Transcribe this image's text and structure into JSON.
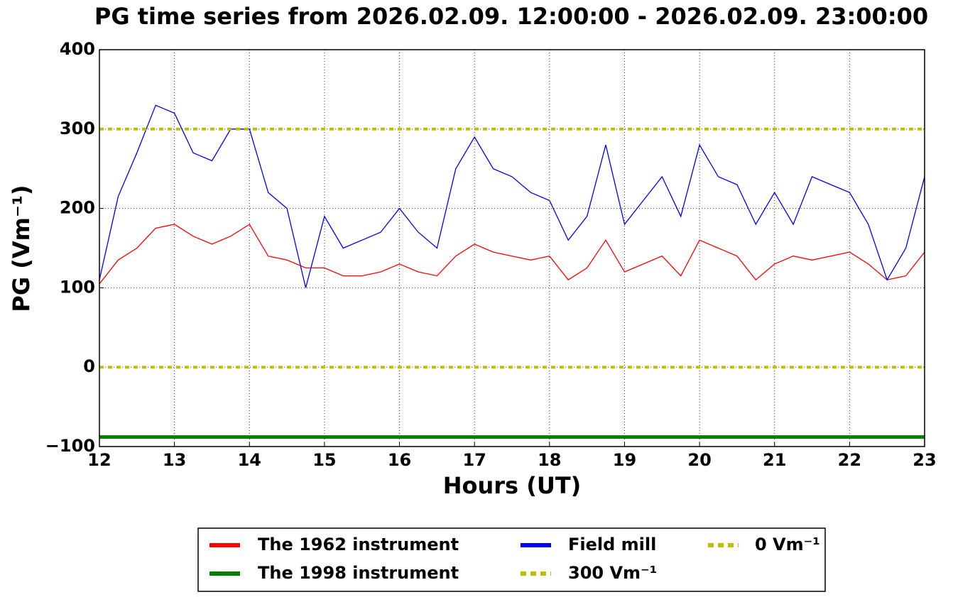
{
  "chart_data": {
    "type": "line",
    "title": "PG time series from 2026.02.09. 12:00:00 - 2026.02.09. 23:00:00",
    "xlabel": "Hours (UT)",
    "ylabel": "PG (Vm⁻¹)",
    "x": [
      12,
      12.25,
      12.5,
      12.75,
      13,
      13.25,
      13.5,
      13.75,
      14,
      14.25,
      14.5,
      14.75,
      15,
      15.25,
      15.5,
      15.75,
      16,
      16.25,
      16.5,
      16.75,
      17,
      17.25,
      17.5,
      17.75,
      18,
      18.25,
      18.5,
      18.75,
      19,
      19.25,
      19.5,
      19.75,
      20,
      20.25,
      20.5,
      20.75,
      21,
      21.25,
      21.5,
      21.75,
      22,
      22.25,
      22.5,
      22.75,
      23
    ],
    "series": [
      {
        "name": "The 1962 instrument",
        "color": "#ff0000",
        "values": [
          105,
          135,
          150,
          175,
          180,
          165,
          155,
          165,
          180,
          140,
          135,
          125,
          125,
          115,
          115,
          120,
          130,
          120,
          115,
          140,
          155,
          145,
          140,
          135,
          140,
          110,
          125,
          160,
          120,
          130,
          140,
          115,
          160,
          150,
          140,
          110,
          130,
          140,
          135,
          140,
          145,
          130,
          110,
          115,
          145
        ]
      },
      {
        "name": "The 1998 instrument",
        "color": "#008000",
        "x": [
          12,
          23
        ],
        "values": [
          -88,
          -88
        ]
      },
      {
        "name": "Field mill",
        "color": "#0000ff",
        "values": [
          110,
          215,
          270,
          330,
          320,
          270,
          260,
          300,
          300,
          220,
          200,
          100,
          190,
          150,
          160,
          170,
          200,
          170,
          150,
          250,
          290,
          250,
          240,
          220,
          210,
          160,
          190,
          280,
          180,
          210,
          240,
          190,
          280,
          240,
          230,
          180,
          220,
          180,
          240,
          230,
          220,
          180,
          110,
          150,
          240
        ]
      },
      {
        "name": "300 Vm⁻¹",
        "color": "#bfbf00",
        "style": "dashed",
        "x": [
          12,
          23
        ],
        "values": [
          300,
          300
        ]
      },
      {
        "name": "0 Vm⁻¹",
        "color": "#bfbf00",
        "style": "dashed",
        "x": [
          12,
          23
        ],
        "values": [
          0,
          0
        ]
      }
    ],
    "xlim": [
      12,
      23
    ],
    "xticks": [
      12,
      13,
      14,
      15,
      16,
      17,
      18,
      19,
      20,
      21,
      22,
      23
    ],
    "ylim": [
      -100,
      400
    ],
    "yticks": [
      {
        "value": -100,
        "label": "−100"
      },
      0,
      100,
      200,
      300,
      400
    ],
    "grid": true,
    "legend": "below"
  }
}
